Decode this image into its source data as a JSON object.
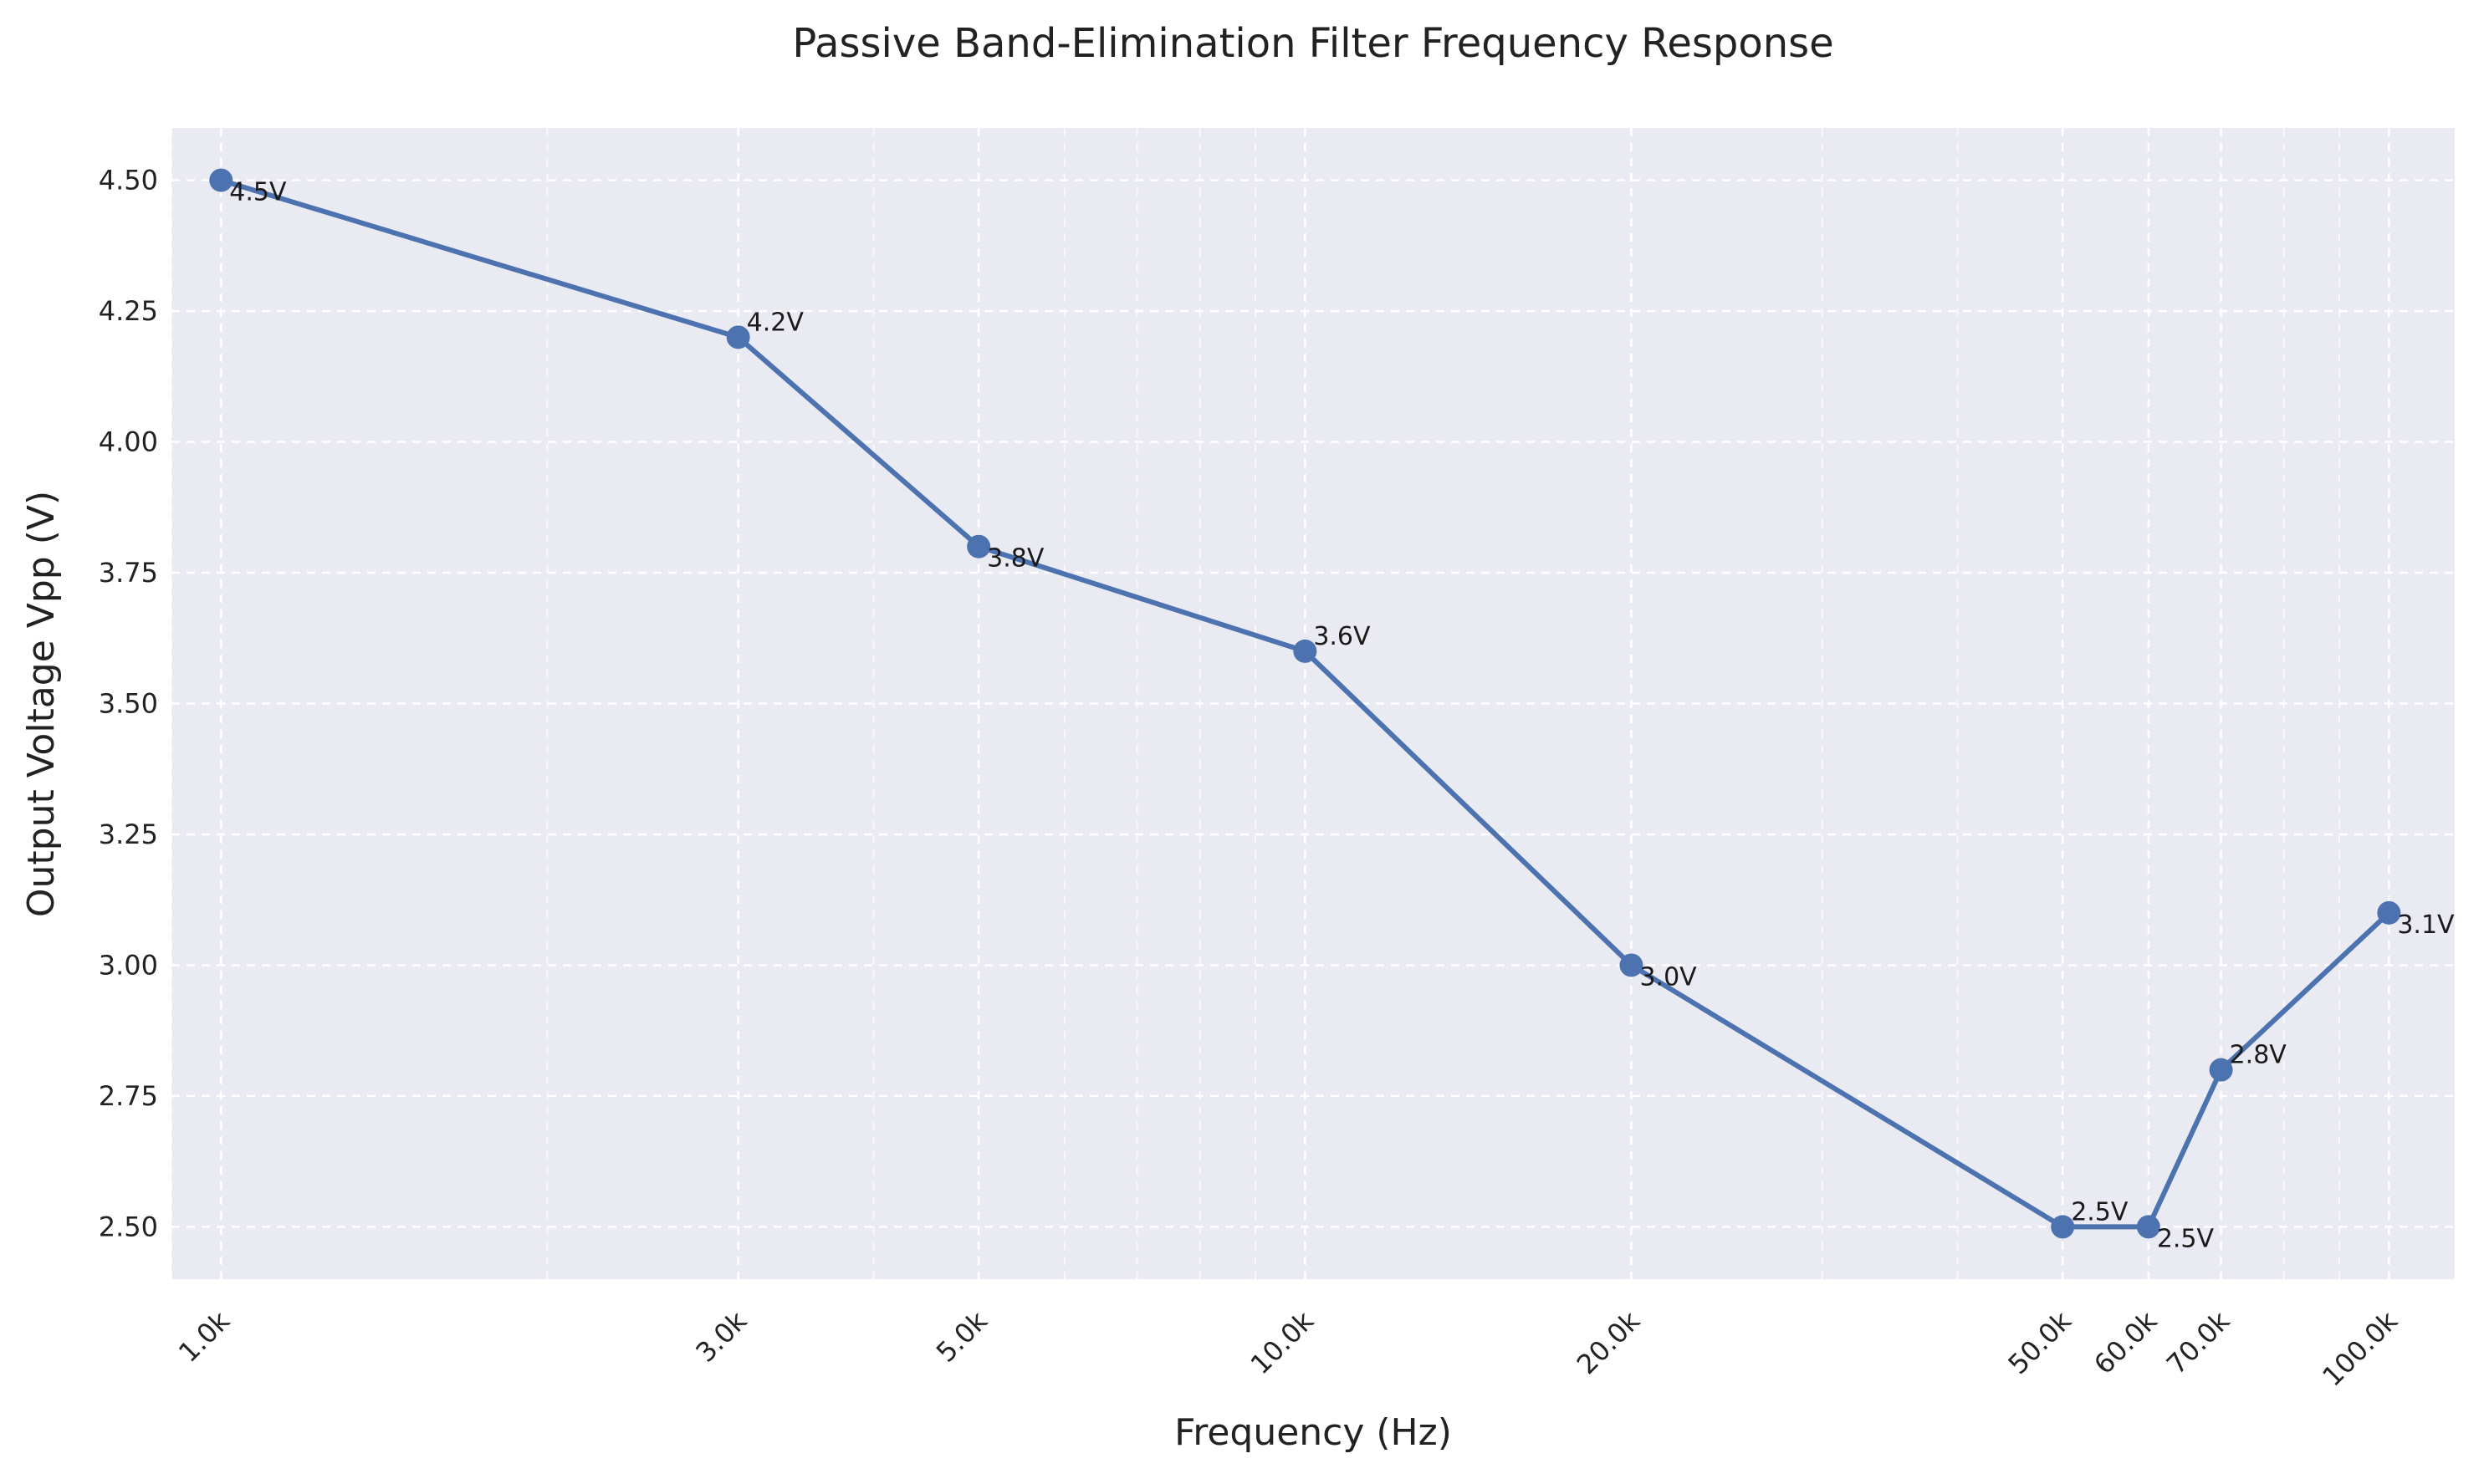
{
  "chart_data": {
    "type": "line",
    "title": "Passive Band-Elimination Filter Frequency Response",
    "xlabel": "Frequency (Hz)",
    "ylabel": "Output Voltage Vpp (V)",
    "x_scale": "log",
    "xlim": [
      900,
      115000
    ],
    "ylim": [
      2.4,
      4.6
    ],
    "grid": true,
    "legend": "none",
    "x": [
      1000,
      3000,
      5000,
      10000,
      20000,
      50000,
      60000,
      70000,
      100000
    ],
    "x_tick_labels": [
      "1.0k",
      "3.0k",
      "5.0k",
      "10.0k",
      "20.0k",
      "50.0k",
      "60.0k",
      "70.0k",
      "100.0k"
    ],
    "y_ticks": [
      2.5,
      2.75,
      3.0,
      3.25,
      3.5,
      3.75,
      4.0,
      4.25,
      4.5
    ],
    "y_tick_labels": [
      "2.50",
      "2.75",
      "3.00",
      "3.25",
      "3.50",
      "3.75",
      "4.00",
      "4.25",
      "4.50"
    ],
    "series": [
      {
        "values": [
          4.5,
          4.2,
          3.8,
          3.6,
          3.0,
          2.5,
          2.5,
          2.8,
          3.1
        ],
        "data_labels": [
          "4.5V",
          "4.2V",
          "3.8V",
          "3.6V",
          "3.0V",
          "2.5V",
          "2.5V",
          "2.8V",
          "3.1V"
        ],
        "color": "#4c72b0"
      }
    ],
    "colors": {
      "plot_background": "#eaeaf2",
      "grid": "#ffffff",
      "line": "#4c72b0"
    }
  }
}
